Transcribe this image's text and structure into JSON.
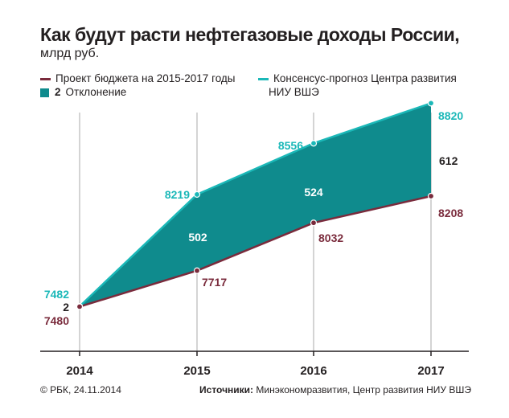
{
  "title": "Как будут расти нефтегазовые доходы России,",
  "subtitle": "млрд руб.",
  "colors": {
    "budget": "#7a2b3c",
    "consensus": "#1bb8b8",
    "fill": "#0f8b8d",
    "axis": "#231f20"
  },
  "legend": {
    "budget_label": "Проект бюджета на 2015-2017 годы",
    "deviation_num": "2",
    "deviation_label": "Отклонение",
    "consensus_label_line1": "Консенсус-прогноз Центра развития",
    "consensus_label_line2": "НИУ ВШЭ"
  },
  "chart_data": {
    "type": "area",
    "title": "Как будут расти нефтегазовые доходы России, млрд руб.",
    "x": [
      "2014",
      "2015",
      "2016",
      "2017"
    ],
    "series": [
      {
        "name": "Проект бюджета на 2015-2017 годы",
        "values": [
          7480,
          7717,
          8032,
          8208
        ]
      },
      {
        "name": "Консенсус-прогноз Центра развития НИУ ВШЭ",
        "values": [
          7482,
          8219,
          8556,
          8820
        ]
      }
    ],
    "deviation": {
      "name": "Отклонение",
      "values": [
        2,
        502,
        524,
        612
      ]
    },
    "ylim": [
      7300,
      8900
    ]
  },
  "footer": {
    "copyright": "© РБК, 24.11.2014",
    "sources_label": "Источники:",
    "sources_text": " Минэкономразвития, Центр развития НИУ ВШЭ"
  }
}
